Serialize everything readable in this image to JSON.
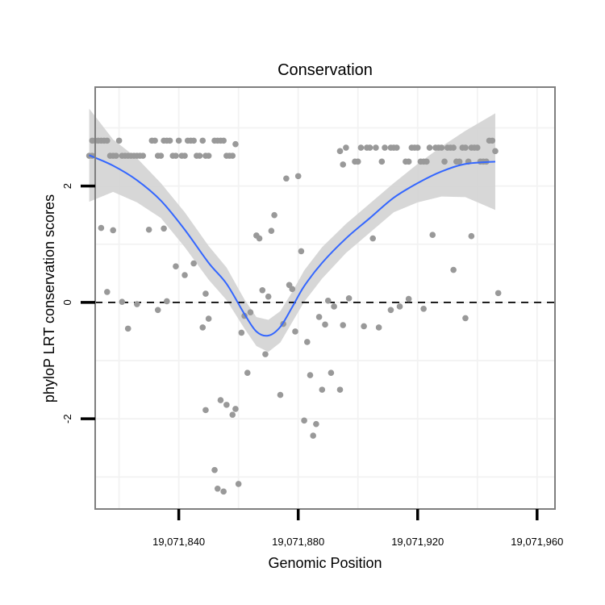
{
  "chart_data": {
    "type": "scatter",
    "title": "Conservation",
    "xlabel": "Genomic Position",
    "ylabel": "phyloP LRT conservation scores",
    "xlim": [
      19071812,
      19071966
    ],
    "ylim": [
      -3.55,
      3.7
    ],
    "x_ticks": [
      19071840,
      19071880,
      19071920,
      19071960
    ],
    "x_tick_labels": [
      "19,071,840",
      "19,071,880",
      "19,071,920",
      "19,071,960"
    ],
    "y_ticks": [
      -2,
      0,
      2
    ],
    "y_tick_labels": [
      "-2",
      "0",
      "2"
    ],
    "reference_line": {
      "y": 0,
      "style": "dashed",
      "color": "#000000"
    },
    "point_color": "#999999",
    "smooth_color": "#3366ff",
    "band_color": "#d3d3d3",
    "series": [
      {
        "name": "scores",
        "points": [
          [
            19071810,
            2.52
          ],
          [
            19071811,
            2.52
          ],
          [
            19071811,
            2.78
          ],
          [
            19071812,
            2.78
          ],
          [
            19071813,
            2.78
          ],
          [
            19071814,
            2.78
          ],
          [
            19071815,
            2.78
          ],
          [
            19071816,
            2.78
          ],
          [
            19071817,
            2.52
          ],
          [
            19071818,
            2.52
          ],
          [
            19071819,
            2.52
          ],
          [
            19071821,
            2.52
          ],
          [
            19071822,
            2.52
          ],
          [
            19071823,
            2.52
          ],
          [
            19071824,
            2.52
          ],
          [
            19071825,
            2.52
          ],
          [
            19071826,
            2.52
          ],
          [
            19071827,
            2.52
          ],
          [
            19071828,
            2.52
          ],
          [
            19071820,
            2.78
          ],
          [
            19071831,
            2.78
          ],
          [
            19071832,
            2.78
          ],
          [
            19071833,
            2.52
          ],
          [
            19071834,
            2.52
          ],
          [
            19071835,
            2.78
          ],
          [
            19071836,
            2.78
          ],
          [
            19071837,
            2.78
          ],
          [
            19071838,
            2.52
          ],
          [
            19071839,
            2.52
          ],
          [
            19071840,
            2.78
          ],
          [
            19071841,
            2.52
          ],
          [
            19071842,
            2.52
          ],
          [
            19071843,
            2.78
          ],
          [
            19071844,
            2.78
          ],
          [
            19071845,
            2.78
          ],
          [
            19071846,
            2.52
          ],
          [
            19071847,
            2.52
          ],
          [
            19071848,
            2.78
          ],
          [
            19071849,
            2.52
          ],
          [
            19071850,
            2.52
          ],
          [
            19071852,
            2.78
          ],
          [
            19071853,
            2.78
          ],
          [
            19071854,
            2.78
          ],
          [
            19071855,
            2.78
          ],
          [
            19071856,
            2.52
          ],
          [
            19071857,
            2.52
          ],
          [
            19071858,
            2.52
          ],
          [
            19071859,
            2.72
          ],
          [
            19071814,
            1.28
          ],
          [
            19071816,
            0.18
          ],
          [
            19071818,
            1.24
          ],
          [
            19071821,
            0.01
          ],
          [
            19071823,
            -0.45
          ],
          [
            19071826,
            -0.03
          ],
          [
            19071830,
            1.25
          ],
          [
            19071833,
            -0.13
          ],
          [
            19071835,
            1.27
          ],
          [
            19071836,
            0.02
          ],
          [
            19071839,
            0.62
          ],
          [
            19071842,
            0.47
          ],
          [
            19071845,
            0.67
          ],
          [
            19071849,
            0.15
          ],
          [
            19071850,
            -0.28
          ],
          [
            19071848,
            -0.43
          ],
          [
            19071849,
            -1.85
          ],
          [
            19071852,
            -2.88
          ],
          [
            19071854,
            -1.68
          ],
          [
            19071856,
            -1.76
          ],
          [
            19071858,
            -1.93
          ],
          [
            19071859,
            -1.83
          ],
          [
            19071853,
            -3.2
          ],
          [
            19071855,
            -3.25
          ],
          [
            19071860,
            -3.12
          ],
          [
            19071861,
            -0.52
          ],
          [
            19071862,
            -0.23
          ],
          [
            19071863,
            -1.21
          ],
          [
            19071864,
            -0.17
          ],
          [
            19071866,
            1.15
          ],
          [
            19071867,
            1.1
          ],
          [
            19071868,
            0.21
          ],
          [
            19071869,
            -0.89
          ],
          [
            19071870,
            0.1
          ],
          [
            19071871,
            1.23
          ],
          [
            19071872,
            1.5
          ],
          [
            19071874,
            -1.59
          ],
          [
            19071875,
            -0.37
          ],
          [
            19071876,
            2.13
          ],
          [
            19071877,
            0.3
          ],
          [
            19071878,
            0.23
          ],
          [
            19071879,
            -0.5
          ],
          [
            19071880,
            2.17
          ],
          [
            19071881,
            0.88
          ],
          [
            19071882,
            -2.03
          ],
          [
            19071883,
            -0.68
          ],
          [
            19071884,
            -1.25
          ],
          [
            19071885,
            -2.29
          ],
          [
            19071886,
            -2.09
          ],
          [
            19071888,
            -1.5
          ],
          [
            19071887,
            -0.25
          ],
          [
            19071889,
            -0.38
          ],
          [
            19071890,
            0.03
          ],
          [
            19071891,
            -1.21
          ],
          [
            19071892,
            -0.07
          ],
          [
            19071894,
            -1.5
          ],
          [
            19071895,
            -0.39
          ],
          [
            19071897,
            0.07
          ],
          [
            19071902,
            -0.41
          ],
          [
            19071907,
            -0.43
          ],
          [
            19071911,
            -0.13
          ],
          [
            19071914,
            -0.07
          ],
          [
            19071917,
            0.06
          ],
          [
            19071922,
            -0.11
          ],
          [
            19071925,
            1.16
          ],
          [
            19071932,
            0.56
          ],
          [
            19071936,
            -0.27
          ],
          [
            19071938,
            1.14
          ],
          [
            19071947,
            0.16
          ],
          [
            19071905,
            1.1
          ],
          [
            19071894,
            2.6
          ],
          [
            19071896,
            2.66
          ],
          [
            19071895,
            2.37
          ],
          [
            19071899,
            2.42
          ],
          [
            19071900,
            2.42
          ],
          [
            19071901,
            2.66
          ],
          [
            19071903,
            2.66
          ],
          [
            19071904,
            2.66
          ],
          [
            19071906,
            2.66
          ],
          [
            19071908,
            2.42
          ],
          [
            19071909,
            2.66
          ],
          [
            19071911,
            2.66
          ],
          [
            19071912,
            2.66
          ],
          [
            19071913,
            2.66
          ],
          [
            19071916,
            2.42
          ],
          [
            19071917,
            2.42
          ],
          [
            19071918,
            2.66
          ],
          [
            19071919,
            2.66
          ],
          [
            19071920,
            2.66
          ],
          [
            19071921,
            2.42
          ],
          [
            19071922,
            2.42
          ],
          [
            19071923,
            2.42
          ],
          [
            19071924,
            2.66
          ],
          [
            19071926,
            2.66
          ],
          [
            19071927,
            2.66
          ],
          [
            19071928,
            2.66
          ],
          [
            19071929,
            2.42
          ],
          [
            19071930,
            2.66
          ],
          [
            19071931,
            2.66
          ],
          [
            19071932,
            2.66
          ],
          [
            19071933,
            2.42
          ],
          [
            19071934,
            2.42
          ],
          [
            19071935,
            2.66
          ],
          [
            19071936,
            2.66
          ],
          [
            19071937,
            2.42
          ],
          [
            19071938,
            2.66
          ],
          [
            19071939,
            2.66
          ],
          [
            19071940,
            2.66
          ],
          [
            19071941,
            2.42
          ],
          [
            19071942,
            2.42
          ],
          [
            19071943,
            2.42
          ],
          [
            19071944,
            2.78
          ],
          [
            19071945,
            2.78
          ],
          [
            19071946,
            2.6
          ]
        ]
      },
      {
        "name": "loess",
        "type": "line",
        "x": [
          19071810,
          19071818,
          19071826,
          19071834,
          19071842,
          19071850,
          19071856,
          19071862,
          19071866,
          19071870,
          19071874,
          19071878,
          19071882,
          19071888,
          19071896,
          19071904,
          19071912,
          19071920,
          19071928,
          19071936,
          19071946
        ],
        "y": [
          2.53,
          2.35,
          2.1,
          1.75,
          1.25,
          0.68,
          0.32,
          -0.2,
          -0.5,
          -0.57,
          -0.42,
          -0.08,
          0.28,
          0.68,
          1.1,
          1.45,
          1.8,
          2.05,
          2.25,
          2.38,
          2.42
        ]
      },
      {
        "name": "confidence band",
        "type": "area",
        "x": [
          19071810,
          19071818,
          19071826,
          19071834,
          19071842,
          19071850,
          19071856,
          19071862,
          19071866,
          19071870,
          19071874,
          19071878,
          19071882,
          19071888,
          19071896,
          19071904,
          19071912,
          19071920,
          19071928,
          19071936,
          19071946
        ],
        "upper": [
          3.33,
          2.8,
          2.48,
          2.05,
          1.55,
          0.97,
          0.6,
          0.05,
          -0.25,
          -0.3,
          -0.15,
          0.18,
          0.55,
          0.95,
          1.35,
          1.7,
          2.05,
          2.38,
          2.68,
          2.95,
          3.25
        ],
        "lower": [
          1.73,
          1.9,
          1.72,
          1.45,
          0.95,
          0.39,
          0.04,
          -0.45,
          -0.75,
          -0.85,
          -0.69,
          -0.34,
          0.01,
          0.41,
          0.85,
          1.2,
          1.55,
          1.72,
          1.82,
          1.81,
          1.59
        ]
      }
    ]
  }
}
